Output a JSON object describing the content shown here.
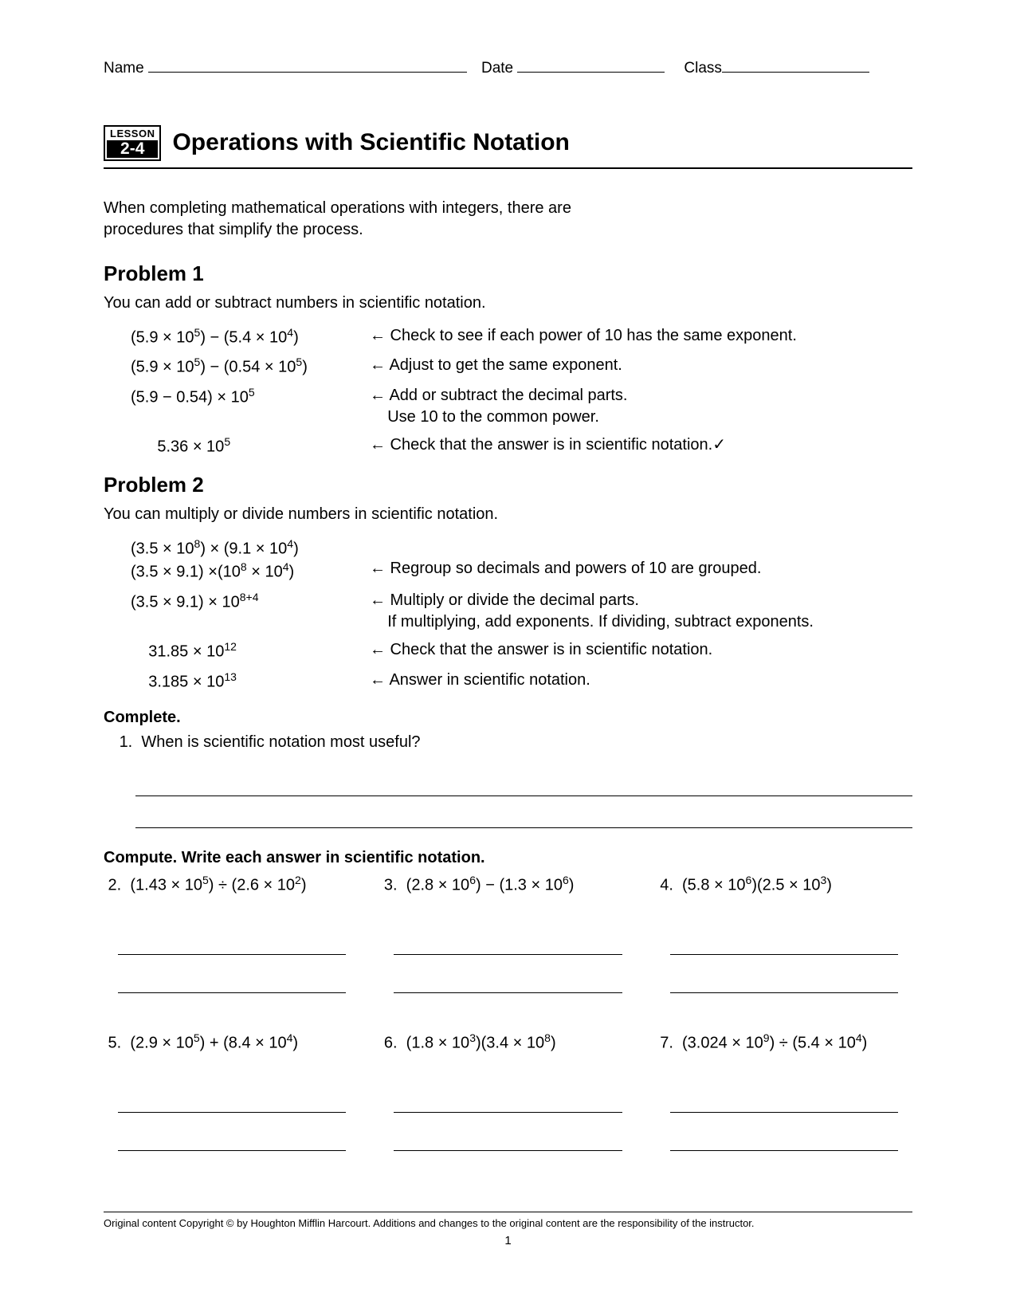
{
  "header": {
    "name_label": "Name",
    "date_label": "Date",
    "class_label": "Class",
    "name_blank_width": 400,
    "date_blank_width": 185,
    "class_blank_width": 185
  },
  "lesson": {
    "badge_top": "LESSON",
    "badge_num": "2-4",
    "title": "Operations with Scientific Notation"
  },
  "intro": "When completing mathematical operations with integers, there are procedures that simplify the process.",
  "problem1": {
    "heading": "Problem 1",
    "sub": "You can add or subtract numbers in scientific notation.",
    "rows": [
      {
        "expr_html": "(5.9 × 10<sup>5</sup>) − (5.4 × 10<sup>4</sup>)",
        "note": "← Check to see if each power of 10 has the same exponent."
      },
      {
        "expr_html": "(5.9 × 10<sup>5</sup>) − (0.54 × 10<sup>5</sup>)",
        "note": "← Adjust to get the same exponent."
      },
      {
        "expr_html": "(5.9 − 0.54) × 10<sup>5</sup>",
        "note": "← Add or subtract the decimal parts.<br>&nbsp;&nbsp;&nbsp;&nbsp;Use 10 to the common power."
      },
      {
        "expr_html": "&nbsp;&nbsp;&nbsp;&nbsp;&nbsp;&nbsp;5.36 × 10<sup>5</sup>",
        "note": "← Check that the answer is in scientific notation.✓"
      }
    ]
  },
  "problem2": {
    "heading": "Problem 2",
    "sub": "You can multiply or divide numbers in scientific notation.",
    "rows": [
      {
        "expr_html": "(3.5 × 10<sup>8</sup>) × (9.1 × 10<sup>4</sup>)<br>(3.5 × 9.1) ×(10<sup>8</sup> × 10<sup>4</sup>)",
        "note": "<br>← Regroup so decimals and powers of 10 are grouped."
      },
      {
        "expr_html": "(3.5 × 9.1) × 10<sup>8+4</sup>",
        "note": "← Multiply or divide the decimal parts.<br>&nbsp;&nbsp;&nbsp;&nbsp;If multiplying, add exponents. If dividing, subtract exponents."
      },
      {
        "expr_html": "&nbsp;&nbsp;&nbsp;&nbsp;31.85 × 10<sup>12</sup>",
        "note": "← Check that the answer is in scientific notation."
      },
      {
        "expr_html": "&nbsp;&nbsp;&nbsp;&nbsp;3.185 × 10<sup>13</sup>",
        "note": "← Answer in scientific notation."
      }
    ]
  },
  "complete": {
    "label": "Complete.",
    "q1_num": "1.",
    "q1_text": "When is scientific notation most useful?"
  },
  "compute": {
    "label": "Compute. Write each answer in scientific notation.",
    "items": [
      {
        "num": "2.",
        "html": "(1.43 × 10<sup>5</sup>) ÷ (2.6 × 10<sup>2</sup>)"
      },
      {
        "num": "3.",
        "html": "(2.8 × 10<sup>6</sup>) − (1.3 × 10<sup>6</sup>)"
      },
      {
        "num": "4.",
        "html": "(5.8 × 10<sup>6</sup>)(2.5 × 10<sup>3</sup>)"
      },
      {
        "num": "5.",
        "html": "(2.9 × 10<sup>5</sup>) + (8.4 × 10<sup>4</sup>)"
      },
      {
        "num": "6.",
        "html": "(1.8 × 10<sup>3</sup>)(3.4 × 10<sup>8</sup>)"
      },
      {
        "num": "7.",
        "html": "(3.024 × 10<sup>9</sup>) ÷ (5.4 × 10<sup>4</sup>)"
      }
    ]
  },
  "footer": {
    "text": "Original content Copyright © by Houghton Mifflin Harcourt. Additions and changes to the original content are the responsibility of the instructor.",
    "page_num": "1"
  }
}
